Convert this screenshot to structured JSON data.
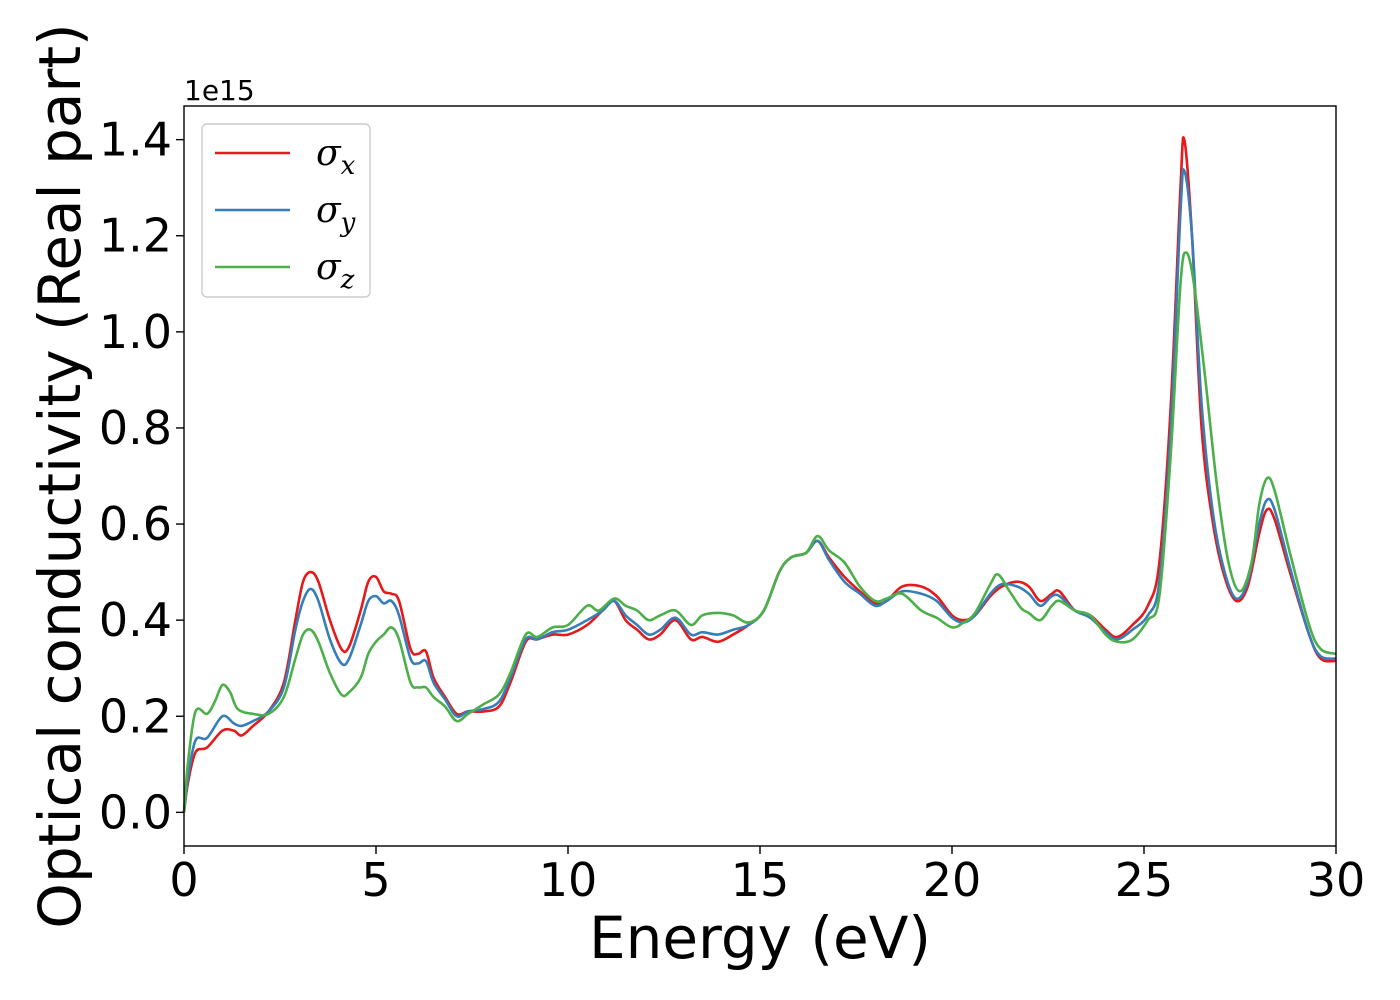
{
  "chart_data": {
    "type": "line",
    "title": "",
    "xlabel": "Energy (eV)",
    "ylabel": "Optical conductivity (Real part)",
    "y_offset_label": "1e15",
    "xlim": [
      0,
      30
    ],
    "ylim": [
      -0.07,
      1.47
    ],
    "x_ticks": [
      0,
      5,
      10,
      15,
      20,
      25,
      30
    ],
    "x_tick_labels": [
      "0",
      "5",
      "10",
      "15",
      "20",
      "25",
      "30"
    ],
    "y_ticks": [
      0.0,
      0.2,
      0.4,
      0.6,
      0.8,
      1.0,
      1.2,
      1.4
    ],
    "y_tick_labels": [
      "0.0",
      "0.2",
      "0.4",
      "0.6",
      "0.8",
      "1.0",
      "1.2",
      "1.4"
    ],
    "grid": false,
    "legend_position": "top-left",
    "series": [
      {
        "name": "σx",
        "legend_symbol": "σ",
        "legend_subscript": "x",
        "color": "#e41a1c",
        "points": [
          [
            0,
            0.0
          ],
          [
            0.1,
            0.06
          ],
          [
            0.3,
            0.125
          ],
          [
            0.6,
            0.135
          ],
          [
            1.0,
            0.17
          ],
          [
            1.3,
            0.17
          ],
          [
            1.5,
            0.16
          ],
          [
            1.8,
            0.18
          ],
          [
            2.2,
            0.21
          ],
          [
            2.6,
            0.27
          ],
          [
            2.9,
            0.4
          ],
          [
            3.1,
            0.48
          ],
          [
            3.3,
            0.5
          ],
          [
            3.5,
            0.48
          ],
          [
            3.8,
            0.4
          ],
          [
            4.1,
            0.34
          ],
          [
            4.3,
            0.345
          ],
          [
            4.6,
            0.42
          ],
          [
            4.8,
            0.48
          ],
          [
            5.0,
            0.49
          ],
          [
            5.2,
            0.46
          ],
          [
            5.4,
            0.455
          ],
          [
            5.6,
            0.44
          ],
          [
            5.9,
            0.34
          ],
          [
            6.1,
            0.33
          ],
          [
            6.3,
            0.335
          ],
          [
            6.5,
            0.28
          ],
          [
            6.8,
            0.24
          ],
          [
            7.1,
            0.205
          ],
          [
            7.4,
            0.21
          ],
          [
            7.8,
            0.21
          ],
          [
            8.2,
            0.22
          ],
          [
            8.5,
            0.27
          ],
          [
            8.9,
            0.355
          ],
          [
            9.2,
            0.36
          ],
          [
            9.6,
            0.37
          ],
          [
            10.0,
            0.37
          ],
          [
            10.5,
            0.39
          ],
          [
            10.9,
            0.42
          ],
          [
            11.2,
            0.44
          ],
          [
            11.5,
            0.4
          ],
          [
            11.8,
            0.38
          ],
          [
            12.1,
            0.36
          ],
          [
            12.4,
            0.37
          ],
          [
            12.8,
            0.4
          ],
          [
            13.2,
            0.36
          ],
          [
            13.5,
            0.365
          ],
          [
            13.9,
            0.355
          ],
          [
            14.3,
            0.37
          ],
          [
            14.7,
            0.39
          ],
          [
            15.1,
            0.42
          ],
          [
            15.5,
            0.5
          ],
          [
            15.8,
            0.53
          ],
          [
            16.2,
            0.54
          ],
          [
            16.5,
            0.565
          ],
          [
            16.8,
            0.53
          ],
          [
            17.2,
            0.49
          ],
          [
            17.6,
            0.46
          ],
          [
            18.0,
            0.435
          ],
          [
            18.3,
            0.44
          ],
          [
            18.7,
            0.47
          ],
          [
            19.2,
            0.47
          ],
          [
            19.6,
            0.45
          ],
          [
            20.0,
            0.41
          ],
          [
            20.3,
            0.4
          ],
          [
            20.6,
            0.41
          ],
          [
            21.0,
            0.45
          ],
          [
            21.3,
            0.47
          ],
          [
            21.7,
            0.48
          ],
          [
            22.0,
            0.47
          ],
          [
            22.3,
            0.44
          ],
          [
            22.6,
            0.455
          ],
          [
            22.8,
            0.46
          ],
          [
            23.2,
            0.42
          ],
          [
            23.6,
            0.41
          ],
          [
            24.0,
            0.38
          ],
          [
            24.3,
            0.365
          ],
          [
            24.7,
            0.39
          ],
          [
            25.1,
            0.43
          ],
          [
            25.4,
            0.52
          ],
          [
            25.7,
            0.85
          ],
          [
            25.95,
            1.3
          ],
          [
            26.05,
            1.4
          ],
          [
            26.25,
            1.2
          ],
          [
            26.5,
            0.8
          ],
          [
            26.8,
            0.6
          ],
          [
            27.1,
            0.49
          ],
          [
            27.4,
            0.44
          ],
          [
            27.7,
            0.47
          ],
          [
            28.0,
            0.58
          ],
          [
            28.2,
            0.63
          ],
          [
            28.4,
            0.61
          ],
          [
            28.8,
            0.5
          ],
          [
            29.3,
            0.37
          ],
          [
            29.6,
            0.32
          ],
          [
            30.0,
            0.315
          ]
        ]
      },
      {
        "name": "σy",
        "legend_symbol": "σ",
        "legend_subscript": "y",
        "color": "#377eb8",
        "points": [
          [
            0,
            0.0
          ],
          [
            0.1,
            0.07
          ],
          [
            0.3,
            0.15
          ],
          [
            0.6,
            0.155
          ],
          [
            1.0,
            0.2
          ],
          [
            1.3,
            0.185
          ],
          [
            1.5,
            0.18
          ],
          [
            1.8,
            0.19
          ],
          [
            2.2,
            0.21
          ],
          [
            2.6,
            0.26
          ],
          [
            2.9,
            0.38
          ],
          [
            3.1,
            0.44
          ],
          [
            3.3,
            0.465
          ],
          [
            3.5,
            0.44
          ],
          [
            3.8,
            0.36
          ],
          [
            4.1,
            0.31
          ],
          [
            4.3,
            0.32
          ],
          [
            4.6,
            0.39
          ],
          [
            4.8,
            0.44
          ],
          [
            5.0,
            0.45
          ],
          [
            5.2,
            0.435
          ],
          [
            5.4,
            0.44
          ],
          [
            5.6,
            0.41
          ],
          [
            5.9,
            0.32
          ],
          [
            6.1,
            0.31
          ],
          [
            6.3,
            0.315
          ],
          [
            6.5,
            0.27
          ],
          [
            6.8,
            0.235
          ],
          [
            7.1,
            0.2
          ],
          [
            7.4,
            0.21
          ],
          [
            7.8,
            0.215
          ],
          [
            8.2,
            0.23
          ],
          [
            8.5,
            0.28
          ],
          [
            8.9,
            0.36
          ],
          [
            9.2,
            0.36
          ],
          [
            9.6,
            0.375
          ],
          [
            10.0,
            0.38
          ],
          [
            10.5,
            0.4
          ],
          [
            10.9,
            0.42
          ],
          [
            11.2,
            0.44
          ],
          [
            11.5,
            0.41
          ],
          [
            11.8,
            0.39
          ],
          [
            12.1,
            0.37
          ],
          [
            12.4,
            0.38
          ],
          [
            12.8,
            0.405
          ],
          [
            13.2,
            0.37
          ],
          [
            13.5,
            0.375
          ],
          [
            13.9,
            0.37
          ],
          [
            14.3,
            0.38
          ],
          [
            14.7,
            0.39
          ],
          [
            15.1,
            0.42
          ],
          [
            15.5,
            0.5
          ],
          [
            15.8,
            0.53
          ],
          [
            16.2,
            0.54
          ],
          [
            16.5,
            0.565
          ],
          [
            16.8,
            0.525
          ],
          [
            17.2,
            0.48
          ],
          [
            17.6,
            0.455
          ],
          [
            18.0,
            0.43
          ],
          [
            18.3,
            0.44
          ],
          [
            18.7,
            0.46
          ],
          [
            19.2,
            0.455
          ],
          [
            19.6,
            0.44
          ],
          [
            20.0,
            0.405
          ],
          [
            20.3,
            0.395
          ],
          [
            20.6,
            0.41
          ],
          [
            21.0,
            0.455
          ],
          [
            21.3,
            0.475
          ],
          [
            21.7,
            0.47
          ],
          [
            22.0,
            0.455
          ],
          [
            22.3,
            0.43
          ],
          [
            22.6,
            0.45
          ],
          [
            22.8,
            0.45
          ],
          [
            23.2,
            0.42
          ],
          [
            23.6,
            0.405
          ],
          [
            24.0,
            0.375
          ],
          [
            24.3,
            0.36
          ],
          [
            24.7,
            0.38
          ],
          [
            25.1,
            0.41
          ],
          [
            25.4,
            0.48
          ],
          [
            25.7,
            0.8
          ],
          [
            25.95,
            1.25
          ],
          [
            26.05,
            1.335
          ],
          [
            26.25,
            1.2
          ],
          [
            26.5,
            0.85
          ],
          [
            26.8,
            0.62
          ],
          [
            27.1,
            0.5
          ],
          [
            27.4,
            0.445
          ],
          [
            27.7,
            0.48
          ],
          [
            28.0,
            0.6
          ],
          [
            28.2,
            0.65
          ],
          [
            28.4,
            0.63
          ],
          [
            28.8,
            0.51
          ],
          [
            29.3,
            0.37
          ],
          [
            29.6,
            0.325
          ],
          [
            30.0,
            0.32
          ]
        ]
      },
      {
        "name": "σz",
        "legend_symbol": "σ",
        "legend_subscript": "z",
        "color": "#4daf4a",
        "points": [
          [
            0,
            0.0
          ],
          [
            0.1,
            0.1
          ],
          [
            0.3,
            0.21
          ],
          [
            0.6,
            0.205
          ],
          [
            0.8,
            0.23
          ],
          [
            1.0,
            0.265
          ],
          [
            1.2,
            0.25
          ],
          [
            1.4,
            0.215
          ],
          [
            1.8,
            0.205
          ],
          [
            2.2,
            0.205
          ],
          [
            2.6,
            0.24
          ],
          [
            2.9,
            0.32
          ],
          [
            3.1,
            0.37
          ],
          [
            3.3,
            0.38
          ],
          [
            3.5,
            0.355
          ],
          [
            3.8,
            0.29
          ],
          [
            4.1,
            0.245
          ],
          [
            4.3,
            0.25
          ],
          [
            4.6,
            0.28
          ],
          [
            4.8,
            0.33
          ],
          [
            5.0,
            0.355
          ],
          [
            5.2,
            0.37
          ],
          [
            5.4,
            0.385
          ],
          [
            5.6,
            0.36
          ],
          [
            5.9,
            0.27
          ],
          [
            6.1,
            0.26
          ],
          [
            6.3,
            0.26
          ],
          [
            6.5,
            0.24
          ],
          [
            6.8,
            0.22
          ],
          [
            7.1,
            0.19
          ],
          [
            7.4,
            0.205
          ],
          [
            7.8,
            0.225
          ],
          [
            8.2,
            0.245
          ],
          [
            8.5,
            0.29
          ],
          [
            8.9,
            0.37
          ],
          [
            9.2,
            0.365
          ],
          [
            9.6,
            0.385
          ],
          [
            10.0,
            0.39
          ],
          [
            10.5,
            0.43
          ],
          [
            10.8,
            0.42
          ],
          [
            11.2,
            0.445
          ],
          [
            11.5,
            0.43
          ],
          [
            11.8,
            0.42
          ],
          [
            12.1,
            0.4
          ],
          [
            12.4,
            0.41
          ],
          [
            12.8,
            0.42
          ],
          [
            13.2,
            0.39
          ],
          [
            13.5,
            0.41
          ],
          [
            13.9,
            0.415
          ],
          [
            14.3,
            0.41
          ],
          [
            14.7,
            0.395
          ],
          [
            15.1,
            0.42
          ],
          [
            15.5,
            0.5
          ],
          [
            15.8,
            0.53
          ],
          [
            16.2,
            0.54
          ],
          [
            16.5,
            0.575
          ],
          [
            16.8,
            0.545
          ],
          [
            17.2,
            0.52
          ],
          [
            17.6,
            0.47
          ],
          [
            18.0,
            0.44
          ],
          [
            18.3,
            0.445
          ],
          [
            18.7,
            0.455
          ],
          [
            19.2,
            0.42
          ],
          [
            19.6,
            0.405
          ],
          [
            20.0,
            0.385
          ],
          [
            20.3,
            0.395
          ],
          [
            20.6,
            0.415
          ],
          [
            21.0,
            0.475
          ],
          [
            21.2,
            0.495
          ],
          [
            21.5,
            0.46
          ],
          [
            21.8,
            0.425
          ],
          [
            22.0,
            0.415
          ],
          [
            22.3,
            0.4
          ],
          [
            22.6,
            0.43
          ],
          [
            22.8,
            0.44
          ],
          [
            23.2,
            0.42
          ],
          [
            23.6,
            0.41
          ],
          [
            24.0,
            0.37
          ],
          [
            24.3,
            0.355
          ],
          [
            24.7,
            0.36
          ],
          [
            25.1,
            0.4
          ],
          [
            25.4,
            0.45
          ],
          [
            25.7,
            0.75
          ],
          [
            25.95,
            1.1
          ],
          [
            26.1,
            1.165
          ],
          [
            26.3,
            1.1
          ],
          [
            26.6,
            0.9
          ],
          [
            26.9,
            0.68
          ],
          [
            27.2,
            0.52
          ],
          [
            27.5,
            0.46
          ],
          [
            27.8,
            0.52
          ],
          [
            28.0,
            0.64
          ],
          [
            28.2,
            0.695
          ],
          [
            28.4,
            0.67
          ],
          [
            28.8,
            0.54
          ],
          [
            29.3,
            0.39
          ],
          [
            29.6,
            0.34
          ],
          [
            30.0,
            0.33
          ]
        ]
      }
    ]
  }
}
